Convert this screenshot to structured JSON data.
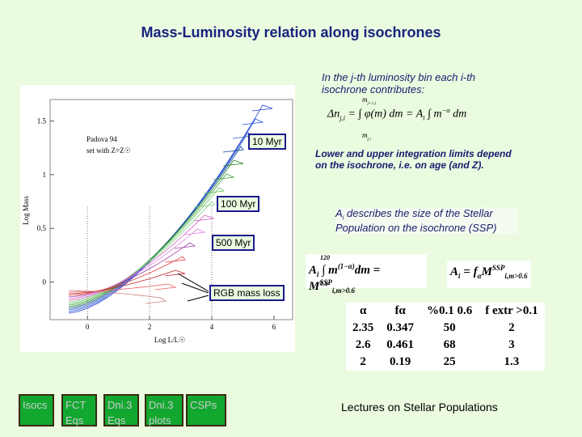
{
  "title": "Mass-Luminosity relation along isochrones",
  "intro": "In the j-th luminosity bin each i-th isochrone contributes:",
  "eq1": {
    "lhs": "Δn",
    "lhs_sub": "j,i",
    "mid": "= ∫ φ(m) dm = A",
    "a_sub": "i",
    "tail": "∫ m",
    "tail_sup": "−α",
    "end": "dm",
    "upper": "m",
    "upper_sub": "j+1,i",
    "lower": "m",
    "lower_sub": "j,i"
  },
  "limits_note": "Lower and upper integration limits depend on the isochrone, i.e. on age (and Z).",
  "ai_note": {
    "a": "A",
    "sub": "i",
    "text": " describes the size of the Stellar Population on the isochrone (SSP)"
  },
  "eq2": {
    "a": "A",
    "a_sub": "i",
    "int": "∫ m",
    "sup": "(1−α)",
    "rest": "dm = M",
    "m_sup": "SSP",
    "m_sub": "i,m>0.6",
    "upper": "120",
    "lower": "0.6"
  },
  "eq3": {
    "a": "A",
    "a_sub": "i",
    "eq": " = f",
    "f_sub": "α",
    "m": "M",
    "m_sup": "SSP",
    "m_sub": "i,m>0.6"
  },
  "labels": [
    "10 Myr",
    "100 Myr",
    "500 Myr",
    "RGB mass loss"
  ],
  "plot": {
    "legend1": "Padova 94",
    "legend2": "set with Z=Z☉",
    "ylabel": "Log Mass",
    "xlabel": "Log L/L☉",
    "xlim": [
      -1.2,
      6.6
    ],
    "ylim": [
      -0.35,
      1.7
    ],
    "xticks": [
      0,
      2,
      4,
      6
    ],
    "yticks": [
      0,
      0.5,
      1,
      1.5
    ]
  },
  "table": {
    "header": [
      "α",
      "fα",
      "%0.1 0.6",
      "f extr >0.1"
    ],
    "rows": [
      [
        "2.35",
        "0.347",
        "50",
        "2"
      ],
      [
        "2.6",
        "0.461",
        "68",
        "3"
      ],
      [
        "2",
        "0.19",
        "25",
        "1.3"
      ]
    ]
  },
  "buttons": [
    "Isocs",
    "FCT Eqs",
    "Dni.3 Eqs",
    "Dni.3 plots",
    "CSPs"
  ],
  "footer": "Lectures on Stellar Populations"
}
